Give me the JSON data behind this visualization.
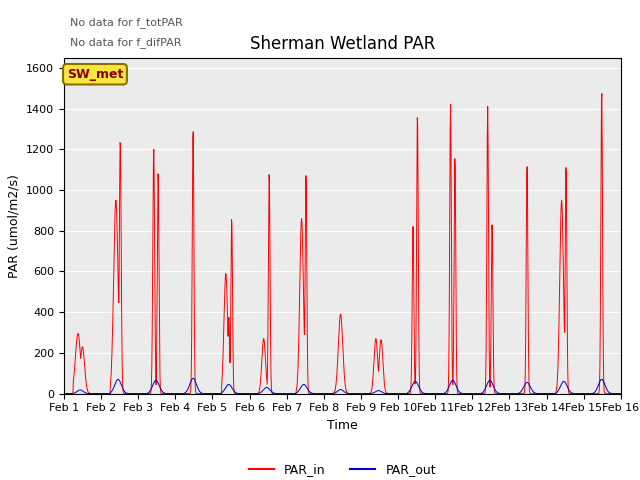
{
  "title": "Sherman Wetland PAR",
  "ylabel": "PAR (umol/m2/s)",
  "xlabel": "Time",
  "annotation1": "No data for f_totPAR",
  "annotation2": "No data for f_difPAR",
  "station_label": "SW_met",
  "ylim": [
    0,
    1650
  ],
  "yticks": [
    0,
    200,
    400,
    600,
    800,
    1000,
    1200,
    1400,
    1600
  ],
  "xtick_labels": [
    "Feb 1",
    "Feb 2",
    "Feb 3",
    "Feb 4",
    "Feb 5",
    "Feb 6",
    "Feb 7",
    "Feb 8",
    "Feb 9",
    "Feb 10",
    "Feb 11",
    "Feb 12",
    "Feb 13",
    "Feb 14",
    "Feb 15",
    "Feb 16"
  ],
  "par_in_color": "#FF0000",
  "par_out_color": "#0000CC",
  "background_color": "#EBEBEB",
  "legend_par_in": "PAR_in",
  "legend_par_out": "PAR_out",
  "title_fontsize": 12,
  "axis_fontsize": 9,
  "tick_fontsize": 8
}
